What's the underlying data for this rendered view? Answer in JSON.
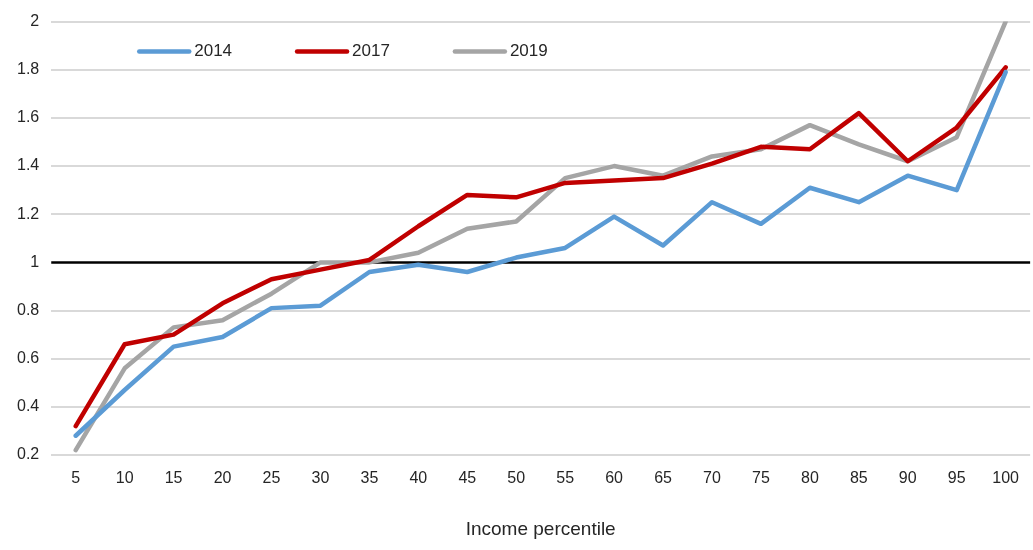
{
  "chart_data": {
    "type": "line",
    "xlabel": "Income percentile",
    "categories": [
      "5",
      "10",
      "15",
      "20",
      "25",
      "30",
      "35",
      "40",
      "45",
      "50",
      "55",
      "60",
      "65",
      "70",
      "75",
      "80",
      "85",
      "90",
      "95",
      "100"
    ],
    "series": [
      {
        "name": "2014",
        "color": "#5b9bd5",
        "values": [
          0.28,
          0.47,
          0.65,
          0.69,
          0.81,
          0.82,
          0.96,
          0.99,
          0.96,
          1.02,
          1.06,
          1.19,
          1.07,
          1.25,
          1.16,
          1.31,
          1.25,
          1.36,
          1.3,
          1.79
        ]
      },
      {
        "name": "2017",
        "color": "#c00000",
        "values": [
          0.32,
          0.66,
          0.7,
          0.83,
          0.93,
          0.97,
          1.01,
          1.15,
          1.28,
          1.27,
          1.33,
          1.34,
          1.35,
          1.41,
          1.48,
          1.47,
          1.62,
          1.42,
          1.56,
          1.81
        ]
      },
      {
        "name": "2019",
        "color": "#a5a5a5",
        "values": [
          0.22,
          0.56,
          0.73,
          0.76,
          0.87,
          1.0,
          1.0,
          1.04,
          1.14,
          1.17,
          1.35,
          1.4,
          1.36,
          1.44,
          1.47,
          1.57,
          1.49,
          1.42,
          1.52,
          2.0
        ]
      }
    ],
    "ylim": [
      0.2,
      2
    ],
    "yticks": [
      0.2,
      0.4,
      0.6,
      0.8,
      1,
      1.2,
      1.4,
      1.6,
      1.8,
      2
    ],
    "ref_lines": [
      {
        "axis": "y",
        "value": 1,
        "color": "#000000"
      }
    ],
    "grid": "y",
    "legend": "top left",
    "marker": "none",
    "line_style": "solid"
  }
}
